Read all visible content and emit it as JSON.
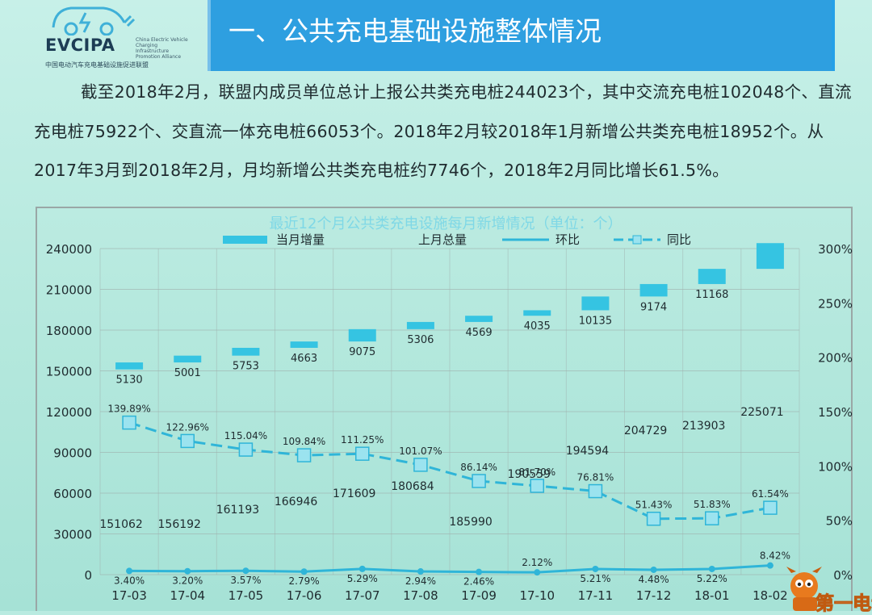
{
  "header": {
    "logo_text": "EVCIPA",
    "logo_subtext": "China Electric Vehicle Charging Infrastructure Promotion Alliance",
    "logo_org": "中国电动汽车充电基础设施促进联盟",
    "title": "一、公共充电基础设施整体情况"
  },
  "paragraph": "截至2018年2月，联盟内成员单位总计上报公共类充电桩244023个，其中交流充电桩102048个、直流充电桩75922个、交直流一体充电桩66053个。2018年2月较2018年1月新增公共类充电桩18952个。从2017年3月到2018年2月，月均新增公共类充电桩约7746个，2018年2月同比增长61.5%。",
  "watermark": "第一电动",
  "chart_data": {
    "type": "bar+line",
    "title": "最近12个月公共类充电设施每月新增情况（单位：个）",
    "legend": [
      "当月增量",
      "上月总量",
      "环比",
      "同比"
    ],
    "legend_position": "top",
    "categories": [
      "17-03",
      "17-04",
      "17-05",
      "17-06",
      "17-07",
      "17-08",
      "17-09",
      "17-10",
      "17-11",
      "17-12",
      "18-01",
      "18-02"
    ],
    "left_axis": {
      "min": 0,
      "max": 240000,
      "ticks": [
        "0",
        "30000",
        "60000",
        "90000",
        "120000",
        "150000",
        "180000",
        "210000",
        "240000"
      ]
    },
    "right_axis": {
      "min": 0,
      "max": 3.0,
      "ticks": [
        "0%",
        "50%",
        "100%",
        "150%",
        "200%",
        "250%",
        "300%"
      ]
    },
    "series": [
      {
        "name": "上月总量",
        "axis": "left",
        "values": [
          151062,
          156192,
          161193,
          166946,
          171609,
          180684,
          185990,
          190559,
          194594,
          204729,
          213903,
          225071
        ],
        "labels": [
          "151062",
          "156192",
          "161193",
          "166946",
          "171609",
          "180684",
          "185990",
          "190559",
          "194594",
          "204729",
          "213903",
          "225071"
        ]
      },
      {
        "name": "当月增量",
        "axis": "left",
        "stacked_on": "上月总量",
        "values": [
          5130,
          5001,
          5753,
          4663,
          9075,
          5306,
          4569,
          4035,
          10135,
          9174,
          11168,
          18952
        ],
        "labels": [
          "5130",
          "5001",
          "5753",
          "4663",
          "9075",
          "5306",
          "4569",
          "4035",
          "10135",
          "9174",
          "11168",
          ""
        ]
      },
      {
        "name": "同比",
        "axis": "right",
        "values": [
          1.3989,
          1.2296,
          1.1504,
          1.0984,
          1.1125,
          1.0107,
          0.8614,
          0.817,
          0.7681,
          0.5143,
          0.5183,
          0.6154
        ],
        "labels": [
          "139.89%",
          "122.96%",
          "115.04%",
          "109.84%",
          "111.25%",
          "101.07%",
          "86.14%",
          "81.70%",
          "76.81%",
          "51.43%",
          "51.83%",
          "61.54%"
        ]
      },
      {
        "name": "环比",
        "axis": "right",
        "values": [
          0.034,
          0.032,
          0.0357,
          0.0279,
          0.0529,
          0.0294,
          0.0246,
          0.0212,
          0.0521,
          0.0448,
          0.0522,
          0.0842
        ],
        "labels": [
          "3.40%",
          "3.20%",
          "3.57%",
          "2.79%",
          "5.29%",
          "2.94%",
          "2.46%",
          "2.12%",
          "5.21%",
          "4.48%",
          "5.22%",
          "8.42%"
        ]
      }
    ],
    "colors": {
      "bar": "#35c4e2",
      "line": "#2fb5d8",
      "text": "#1f2b2f",
      "grid": "#9fb0ad",
      "title": "#7fd8e6"
    }
  }
}
